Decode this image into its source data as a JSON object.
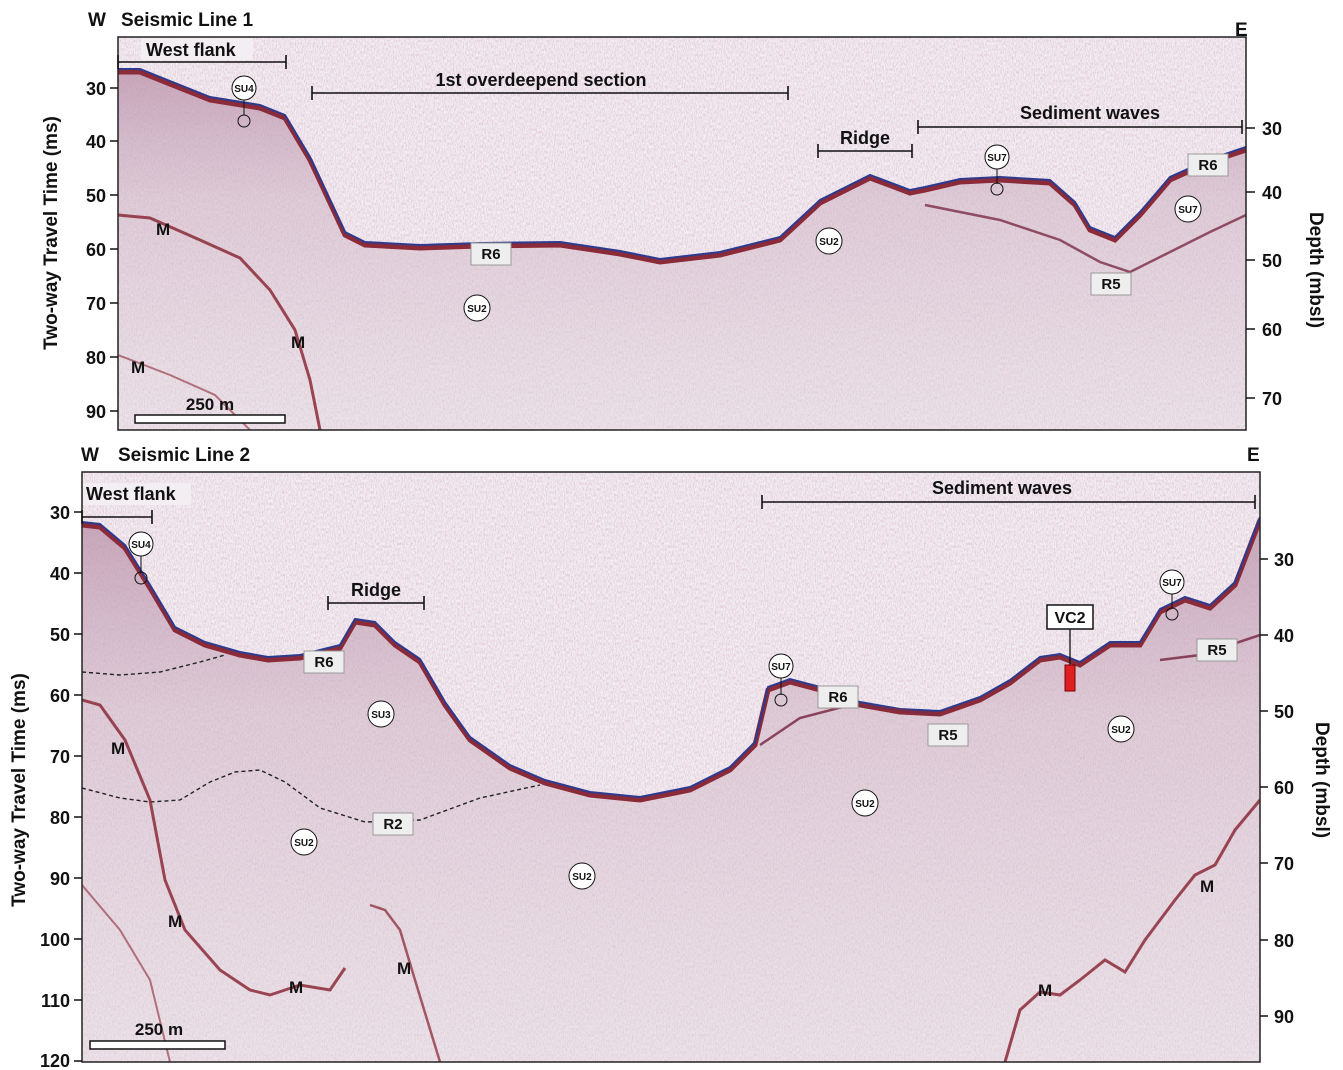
{
  "panels": [
    {
      "west": "W",
      "east": "E",
      "title": "Seismic Line 1",
      "left_axis_title": "Two-way Travel Time (ms)",
      "right_axis_title": "Depth (mbsl)",
      "twt_ticks": [
        "30",
        "40",
        "50",
        "60",
        "70",
        "80",
        "90"
      ],
      "depth_ticks": [
        "30",
        "40",
        "50",
        "60",
        "70"
      ],
      "sections": [
        "West flank",
        "1st overdeepend section",
        "Ridge",
        "Sediment waves"
      ],
      "units": [
        "SU4",
        "SU2",
        "SU2",
        "SU7",
        "SU7"
      ],
      "reflectors": [
        "R6",
        "R6",
        "R5"
      ],
      "m_labels": [
        "M",
        "M",
        "M"
      ],
      "scale_bar": "250 m"
    },
    {
      "west": "W",
      "east": "E",
      "title": "Seismic Line 2",
      "left_axis_title": "Two-way Travel Time (ms)",
      "right_axis_title": "Depth (mbsl)",
      "twt_ticks": [
        "30",
        "40",
        "50",
        "60",
        "70",
        "80",
        "90",
        "100",
        "110",
        "120"
      ],
      "depth_ticks": [
        "30",
        "40",
        "50",
        "60",
        "70",
        "80",
        "90"
      ],
      "sections": [
        "West flank",
        "Ridge",
        "Sediment waves"
      ],
      "units": [
        "SU4",
        "SU3",
        "SU2",
        "SU2",
        "SU2",
        "SU7",
        "SU2",
        "SU7"
      ],
      "reflectors": [
        "R6",
        "R2",
        "R6",
        "R5",
        "R5"
      ],
      "m_labels": [
        "M",
        "M",
        "M",
        "M",
        "M",
        "M"
      ],
      "core": "VC2",
      "scale_bar": "250 m"
    }
  ],
  "colors": {
    "background": "#f3eef2",
    "seabed_red": "#8b2a38",
    "seabed_blue": "#2c3b8f",
    "noise": "#8a4a6a",
    "core": "#e02020"
  }
}
